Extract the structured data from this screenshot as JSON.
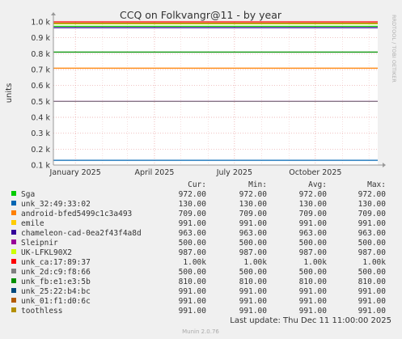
{
  "chart_data": {
    "type": "line",
    "title": "CCQ on Folkvangr@11 - by year",
    "ylabel": "units",
    "side_label": "RRDTOOL / TOBI OETIKER",
    "ylim": [
      0.1,
      1.0
    ],
    "yticks": [
      {
        "value": 1.0,
        "label": "1.0 k"
      },
      {
        "value": 0.9,
        "label": "0.9 k"
      },
      {
        "value": 0.8,
        "label": "0.8 k"
      },
      {
        "value": 0.7,
        "label": "0.7 k"
      },
      {
        "value": 0.6,
        "label": "0.6 k"
      },
      {
        "value": 0.5,
        "label": "0.5 k"
      },
      {
        "value": 0.4,
        "label": "0.4 k"
      },
      {
        "value": 0.3,
        "label": "0.3 k"
      },
      {
        "value": 0.2,
        "label": "0.2 k"
      },
      {
        "value": 0.1,
        "label": "0.1 k"
      }
    ],
    "x_range": [
      "2024-12-07",
      "2025-12-11"
    ],
    "xticks": [
      {
        "date": "2025-01-01",
        "label": "January 2025"
      },
      {
        "date": "2025-04-01",
        "label": "April 2025"
      },
      {
        "date": "2025-07-01",
        "label": "July 2025"
      },
      {
        "date": "2025-10-01",
        "label": "October 2025"
      }
    ],
    "grid": true,
    "legend_header": {
      "cur": "Cur:",
      "min": "Min:",
      "avg": "Avg:",
      "max": "Max:"
    },
    "series": [
      {
        "name": "Sga",
        "color": "#00cc00",
        "value": 972,
        "cur": "972.00",
        "min": "972.00",
        "avg": "972.00",
        "max": "972.00"
      },
      {
        "name": "unk_32:49:33:02",
        "color": "#0066b3",
        "value": 130,
        "cur": "130.00",
        "min": "130.00",
        "avg": "130.00",
        "max": "130.00"
      },
      {
        "name": "android-bfed5499c1c3a493",
        "color": "#ff8000",
        "value": 709,
        "cur": "709.00",
        "min": "709.00",
        "avg": "709.00",
        "max": "709.00"
      },
      {
        "name": "emile",
        "color": "#ffcc00",
        "value": 991,
        "cur": "991.00",
        "min": "991.00",
        "avg": "991.00",
        "max": "991.00"
      },
      {
        "name": "chameleon-cad-0ea2f43f4a8d",
        "color": "#330099",
        "value": 963,
        "cur": "963.00",
        "min": "963.00",
        "avg": "963.00",
        "max": "963.00"
      },
      {
        "name": "Sleipnir",
        "color": "#990099",
        "value": 500,
        "cur": "500.00",
        "min": "500.00",
        "avg": "500.00",
        "max": "500.00"
      },
      {
        "name": "UK-LFKL90X2",
        "color": "#ccff00",
        "value": 987,
        "cur": "987.00",
        "min": "987.00",
        "avg": "987.00",
        "max": "987.00"
      },
      {
        "name": "unk_ca:17:89:37",
        "color": "#ff0000",
        "value": 1000,
        "cur": "1.00k",
        "min": "1.00k",
        "avg": "1.00k",
        "max": "1.00k"
      },
      {
        "name": "unk_2d:c9:f8:66",
        "color": "#808080",
        "value": 500,
        "cur": "500.00",
        "min": "500.00",
        "avg": "500.00",
        "max": "500.00"
      },
      {
        "name": "unk_fb:e1:e3:5b",
        "color": "#008f00",
        "value": 810,
        "cur": "810.00",
        "min": "810.00",
        "avg": "810.00",
        "max": "810.00"
      },
      {
        "name": "unk_25:22:b4:bc",
        "color": "#00487d",
        "value": 991,
        "cur": "991.00",
        "min": "991.00",
        "avg": "991.00",
        "max": "991.00"
      },
      {
        "name": "unk_01:f1:d0:6c",
        "color": "#b35a00",
        "value": 991,
        "cur": "991.00",
        "min": "991.00",
        "avg": "991.00",
        "max": "991.00"
      },
      {
        "name": "toothless",
        "color": "#b38f00",
        "value": 991,
        "cur": "991.00",
        "min": "991.00",
        "avg": "991.00",
        "max": "991.00"
      }
    ],
    "last_update": "Last update: Thu Dec 11 11:00:00 2025",
    "footer": "Munin 2.0.76"
  }
}
